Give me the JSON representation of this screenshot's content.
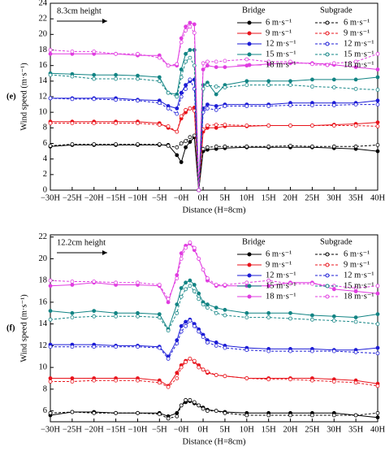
{
  "chart_data": [
    {
      "type": "line",
      "panel_label": "(e)",
      "annotation": "8.3cm height",
      "y_label": "Wind speed (m·s⁻¹)",
      "x_label": "Distance (H=8cm)",
      "legend_titles": [
        "Bridge",
        "Subgrade"
      ],
      "x": [
        -30,
        -25,
        -20,
        -15,
        -10,
        -5,
        -3,
        -1,
        0,
        1,
        2,
        3,
        4,
        5,
        6,
        8,
        10,
        15,
        20,
        25,
        30,
        35,
        40,
        45
      ],
      "xlim": [
        -30,
        45
      ],
      "xticks": [
        {
          "value": -30,
          "label": "−30H"
        },
        {
          "value": -25,
          "label": "−25H"
        },
        {
          "value": -20,
          "label": "−20H"
        },
        {
          "value": -15,
          "label": "−15H"
        },
        {
          "value": -10,
          "label": "−10H"
        },
        {
          "value": -5,
          "label": "−5H"
        },
        {
          "value": 0,
          "label": "−0H"
        },
        {
          "value": 5,
          "label": "0H"
        },
        {
          "value": 10,
          "label": "5H"
        },
        {
          "value": 15,
          "label": "10H"
        },
        {
          "value": 20,
          "label": "15H"
        },
        {
          "value": 25,
          "label": "20H"
        },
        {
          "value": 30,
          "label": "25H"
        },
        {
          "value": 35,
          "label": "30H"
        },
        {
          "value": 40,
          "label": "35H"
        },
        {
          "value": 45,
          "label": "40H"
        }
      ],
      "ylim": [
        0,
        24
      ],
      "yticks": [
        0,
        2,
        4,
        6,
        8,
        10,
        12,
        14,
        16,
        18,
        20,
        22,
        24
      ],
      "series": [
        {
          "name": "6 m·s⁻¹",
          "group": "Bridge",
          "style": "solid",
          "color": "#000000",
          "values": [
            5.6,
            5.8,
            5.8,
            5.8,
            5.8,
            5.8,
            5.8,
            4.5,
            3.6,
            5.5,
            6.2,
            6.8,
            0,
            5.0,
            5.2,
            5.3,
            5.4,
            5.5,
            5.5,
            5.5,
            5.5,
            5.4,
            5.3,
            5.0
          ]
        },
        {
          "name": "9 m·s⁻¹",
          "group": "Bridge",
          "style": "solid",
          "color": "#e8141c",
          "values": [
            8.8,
            8.8,
            8.8,
            8.8,
            8.8,
            8.6,
            8.0,
            7.5,
            9.2,
            10.0,
            10.5,
            10.6,
            0,
            7.5,
            8.0,
            8.0,
            8.2,
            8.2,
            8.3,
            8.3,
            8.3,
            8.4,
            8.5,
            8.7
          ]
        },
        {
          "name": "12 m·s⁻¹",
          "group": "Bridge",
          "style": "solid",
          "color": "#1c1cd6",
          "values": [
            11.8,
            11.8,
            11.8,
            11.8,
            11.6,
            11.5,
            10.8,
            10.5,
            12.5,
            13.5,
            14.0,
            14.2,
            0,
            10.5,
            11.0,
            10.8,
            11.0,
            11.0,
            11.0,
            11.2,
            11.2,
            11.2,
            11.2,
            11.5
          ]
        },
        {
          "name": "15 m·s⁻¹",
          "group": "Bridge",
          "style": "solid",
          "color": "#128484",
          "values": [
            15.0,
            14.9,
            14.8,
            14.8,
            14.7,
            14.5,
            12.5,
            12.3,
            15.5,
            17.5,
            18.0,
            18.0,
            0,
            13.5,
            13.8,
            12.3,
            13.5,
            14.0,
            14.0,
            14.0,
            14.2,
            14.2,
            14.2,
            14.5
          ]
        },
        {
          "name": "18 m·s⁻¹",
          "group": "Bridge",
          "style": "solid",
          "color": "#e03ce0",
          "values": [
            17.5,
            17.5,
            17.5,
            17.5,
            17.3,
            17.3,
            16.0,
            16.0,
            19.5,
            21.0,
            21.5,
            21.3,
            0,
            15.5,
            16.0,
            15.8,
            15.8,
            16.0,
            16.2,
            16.3,
            16.3,
            16.1,
            15.8,
            15.5
          ]
        },
        {
          "name": "6 m·s⁻¹",
          "group": "Subgrade",
          "style": "dashed",
          "color": "#000000",
          "values": [
            5.7,
            5.9,
            5.9,
            5.9,
            5.9,
            5.9,
            5.7,
            5.5,
            6.0,
            6.3,
            6.8,
            7.0,
            0,
            5.3,
            5.5,
            5.6,
            5.6,
            5.6,
            5.6,
            5.7,
            5.6,
            5.6,
            5.6,
            5.8
          ]
        },
        {
          "name": "9 m·s⁻¹",
          "group": "Subgrade",
          "style": "dashed",
          "color": "#e8141c",
          "values": [
            8.6,
            8.6,
            8.6,
            8.6,
            8.6,
            8.4,
            8.2,
            7.5,
            9.5,
            10.3,
            10.5,
            10.2,
            0,
            7.8,
            8.3,
            8.4,
            8.4,
            8.3,
            8.3,
            8.3,
            8.3,
            8.3,
            8.3,
            8.2
          ]
        },
        {
          "name": "12 m·s⁻¹",
          "group": "Subgrade",
          "style": "dashed",
          "color": "#1c1cd6",
          "values": [
            11.8,
            11.7,
            11.7,
            11.6,
            11.5,
            11.2,
            10.5,
            9.8,
            12.0,
            13.0,
            14.2,
            13.0,
            0,
            10.0,
            10.5,
            10.3,
            10.8,
            10.8,
            10.8,
            10.9,
            10.9,
            10.9,
            11.0,
            11.0
          ]
        },
        {
          "name": "15 m·s⁻¹",
          "group": "Subgrade",
          "style": "dashed",
          "color": "#128484",
          "values": [
            14.8,
            14.6,
            14.3,
            14.3,
            14.3,
            14.0,
            12.5,
            12.0,
            14.5,
            16.5,
            17.0,
            16.0,
            0,
            13.0,
            13.5,
            13.3,
            13.2,
            13.5,
            13.5,
            13.5,
            13.3,
            13.2,
            13.0,
            12.9
          ]
        },
        {
          "name": "18 m·s⁻¹",
          "group": "Subgrade",
          "style": "dashed",
          "color": "#e03ce0",
          "values": [
            18.0,
            17.8,
            17.8,
            17.5,
            17.5,
            17.0,
            16.0,
            16.2,
            19.0,
            20.5,
            21.0,
            20.2,
            0,
            16.3,
            16.5,
            16.5,
            16.6,
            16.8,
            16.5,
            16.5,
            16.2,
            16.3,
            16.5,
            17.5
          ]
        }
      ]
    },
    {
      "type": "line",
      "panel_label": "(f)",
      "annotation": "12.2cm height",
      "y_label": "Wind speed (m·s⁻¹)",
      "x_label": "Distance (H=8cm)",
      "legend_titles": [
        "Bridge",
        "Subgrade"
      ],
      "x": [
        -30,
        -25,
        -20,
        -15,
        -10,
        -5,
        -3,
        -1,
        0,
        1,
        2,
        3,
        4,
        5,
        6,
        8,
        10,
        15,
        20,
        25,
        30,
        35,
        40,
        45
      ],
      "xlim": [
        -30,
        45
      ],
      "xticks": [
        {
          "value": -30,
          "label": "−30H"
        },
        {
          "value": -25,
          "label": "−25H"
        },
        {
          "value": -20,
          "label": "−20H"
        },
        {
          "value": -15,
          "label": "−15H"
        },
        {
          "value": -10,
          "label": "−10H"
        },
        {
          "value": -5,
          "label": "−5H"
        },
        {
          "value": 0,
          "label": "−0H"
        },
        {
          "value": 5,
          "label": "0H"
        },
        {
          "value": 10,
          "label": "5H"
        },
        {
          "value": 15,
          "label": "10H"
        },
        {
          "value": 20,
          "label": "15H"
        },
        {
          "value": 25,
          "label": "20H"
        },
        {
          "value": 30,
          "label": "25H"
        },
        {
          "value": 35,
          "label": "30H"
        },
        {
          "value": 40,
          "label": "35H"
        },
        {
          "value": 45,
          "label": "40H"
        }
      ],
      "ylim": [
        5,
        22.2
      ],
      "yticks": [
        6,
        8,
        10,
        12,
        14,
        16,
        18,
        20,
        22
      ],
      "series": [
        {
          "name": "6 m·s⁻¹",
          "group": "Bridge",
          "style": "solid",
          "color": "#000000",
          "values": [
            5.6,
            5.9,
            5.9,
            5.8,
            5.8,
            5.8,
            5.5,
            5.8,
            6.5,
            6.8,
            6.9,
            6.7,
            6.5,
            6.3,
            6.1,
            6.0,
            5.9,
            5.8,
            5.8,
            5.8,
            5.8,
            5.8,
            5.6,
            5.4
          ]
        },
        {
          "name": "9 m·s⁻¹",
          "group": "Bridge",
          "style": "solid",
          "color": "#e8141c",
          "values": [
            9.0,
            9.0,
            9.0,
            9.0,
            9.0,
            8.8,
            8.3,
            9.5,
            10.2,
            10.6,
            10.8,
            10.5,
            10.2,
            9.8,
            9.5,
            9.3,
            9.2,
            9.0,
            9.0,
            9.0,
            9.0,
            8.9,
            8.8,
            8.5
          ]
        },
        {
          "name": "12 m·s⁻¹",
          "group": "Bridge",
          "style": "solid",
          "color": "#1c1cd6",
          "values": [
            12.1,
            12.1,
            12.1,
            12.0,
            12.0,
            11.9,
            11.0,
            12.5,
            13.8,
            14.2,
            14.4,
            14.0,
            13.5,
            13.0,
            12.5,
            12.3,
            12.0,
            11.8,
            11.7,
            11.7,
            11.7,
            11.6,
            11.6,
            11.8
          ]
        },
        {
          "name": "15 m·s⁻¹",
          "group": "Bridge",
          "style": "solid",
          "color": "#128484",
          "values": [
            15.2,
            15.0,
            15.2,
            15.0,
            15.0,
            14.9,
            13.5,
            15.8,
            17.3,
            17.8,
            18.0,
            17.6,
            16.8,
            16.0,
            15.8,
            15.5,
            15.3,
            15.0,
            15.0,
            15.0,
            14.8,
            14.7,
            14.6,
            14.9
          ]
        },
        {
          "name": "18 m·s⁻¹",
          "group": "Bridge",
          "style": "solid",
          "color": "#e03ce0",
          "values": [
            17.5,
            17.6,
            17.8,
            17.6,
            17.6,
            17.5,
            16.0,
            18.5,
            20.5,
            21.2,
            21.4,
            20.8,
            20.0,
            19.0,
            18.0,
            17.5,
            17.5,
            17.5,
            17.5,
            17.8,
            17.8,
            17.2,
            17.0,
            16.8
          ]
        },
        {
          "name": "6 m·s⁻¹",
          "group": "Subgrade",
          "style": "dashed",
          "color": "#000000",
          "values": [
            5.8,
            5.9,
            5.8,
            5.8,
            5.8,
            5.7,
            5.3,
            5.5,
            6.5,
            7.0,
            7.0,
            6.8,
            6.5,
            6.2,
            6.0,
            6.0,
            5.8,
            5.6,
            5.6,
            5.6,
            5.6,
            5.6,
            5.6,
            5.8
          ]
        },
        {
          "name": "9 m·s⁻¹",
          "group": "Subgrade",
          "style": "dashed",
          "color": "#e8141c",
          "values": [
            8.7,
            8.7,
            8.8,
            8.8,
            8.8,
            8.6,
            8.2,
            9.0,
            10.0,
            10.5,
            10.8,
            10.6,
            10.0,
            9.8,
            9.6,
            9.3,
            9.2,
            9.0,
            8.9,
            8.9,
            8.8,
            8.7,
            8.6,
            8.3
          ]
        },
        {
          "name": "12 m·s⁻¹",
          "group": "Subgrade",
          "style": "dashed",
          "color": "#1c1cd6",
          "values": [
            11.9,
            11.9,
            11.9,
            11.9,
            11.9,
            11.8,
            10.8,
            12.2,
            13.3,
            13.8,
            14.3,
            13.8,
            13.3,
            12.8,
            12.3,
            12.0,
            11.8,
            11.6,
            11.5,
            11.5,
            11.5,
            11.5,
            11.4,
            11.3
          ]
        },
        {
          "name": "15 m·s⁻¹",
          "group": "Subgrade",
          "style": "dashed",
          "color": "#128484",
          "values": [
            14.4,
            14.6,
            14.7,
            14.7,
            14.7,
            14.6,
            13.4,
            15.0,
            16.5,
            17.2,
            17.5,
            17.0,
            16.3,
            15.8,
            15.5,
            15.0,
            14.8,
            14.6,
            14.6,
            14.5,
            14.4,
            14.3,
            14.2,
            14.0
          ]
        },
        {
          "name": "18 m·s⁻¹",
          "group": "Subgrade",
          "style": "dashed",
          "color": "#e03ce0",
          "values": [
            18.0,
            17.9,
            17.9,
            17.8,
            17.8,
            17.6,
            16.3,
            18.2,
            20.0,
            21.0,
            21.5,
            21.0,
            20.0,
            19.0,
            18.2,
            17.6,
            17.6,
            17.8,
            18.0,
            17.7,
            17.7,
            17.5,
            17.3,
            17.5
          ]
        }
      ]
    }
  ]
}
